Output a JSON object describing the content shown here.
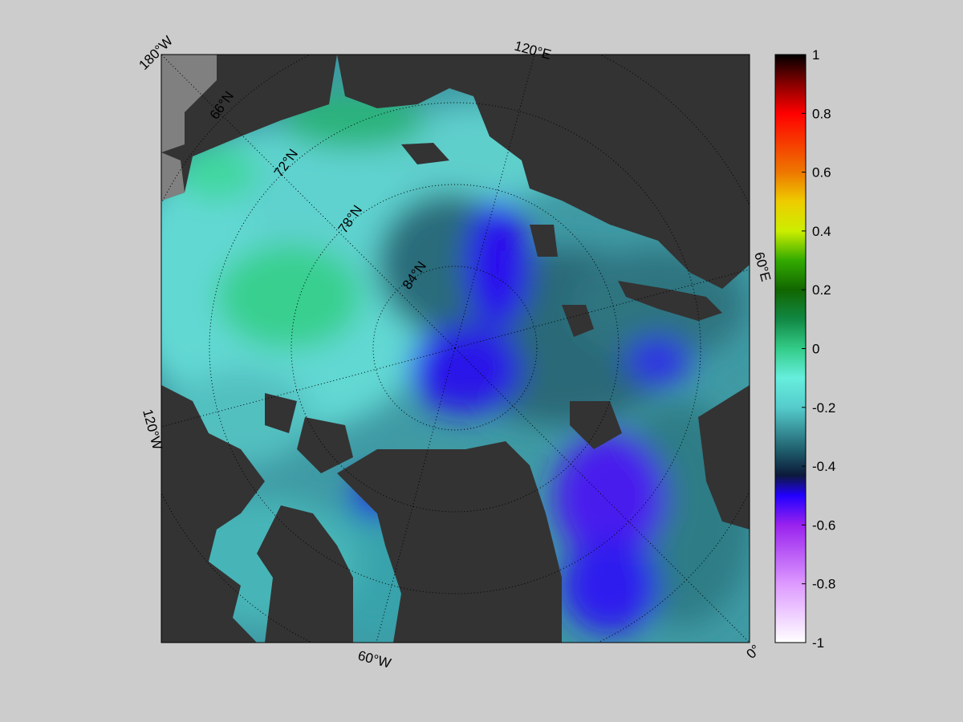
{
  "map": {
    "longitude_labels": [
      {
        "text": "180°W",
        "deg": "180",
        "dir": "W"
      },
      {
        "text": "120°E",
        "deg": "120",
        "dir": "E"
      },
      {
        "text": "60°E",
        "deg": "60",
        "dir": "E"
      },
      {
        "text": "0°",
        "deg": "0",
        "dir": ""
      },
      {
        "text": "60°W",
        "deg": "60",
        "dir": "W"
      },
      {
        "text": "120°W",
        "deg": "120",
        "dir": "W"
      }
    ],
    "latitude_labels": [
      {
        "text": "66°N",
        "deg": "66",
        "dir": "N"
      },
      {
        "text": "72°N",
        "deg": "72",
        "dir": "N"
      },
      {
        "text": "78°N",
        "deg": "78",
        "dir": "N"
      },
      {
        "text": "84°N",
        "deg": "84",
        "dir": "N"
      }
    ],
    "colors": {
      "background": "#cccccc",
      "land": "#333333",
      "missing": "#808080",
      "graticule": "#000000"
    }
  },
  "colorbar": {
    "min": -1,
    "max": 1,
    "ticks": [
      "1",
      "0.8",
      "0.6",
      "0.4",
      "0.2",
      "0",
      "-0.2",
      "-0.4",
      "-0.6",
      "-0.8",
      "-1"
    ],
    "tick_values": [
      1,
      0.8,
      0.6,
      0.4,
      0.2,
      0,
      -0.2,
      -0.4,
      -0.6,
      -0.8,
      -1
    ],
    "stops": [
      {
        "v": -1.0,
        "c": "#ffffff"
      },
      {
        "v": -0.8,
        "c": "#dd99ff"
      },
      {
        "v": -0.6,
        "c": "#9922ee"
      },
      {
        "v": -0.5,
        "c": "#2200ff"
      },
      {
        "v": -0.43,
        "c": "#0c1a3a"
      },
      {
        "v": -0.35,
        "c": "#1e5b6a"
      },
      {
        "v": -0.2,
        "c": "#55cccc"
      },
      {
        "v": -0.1,
        "c": "#66eedd"
      },
      {
        "v": 0.0,
        "c": "#33cc88"
      },
      {
        "v": 0.1,
        "c": "#118844"
      },
      {
        "v": 0.2,
        "c": "#116600"
      },
      {
        "v": 0.3,
        "c": "#33aa00"
      },
      {
        "v": 0.4,
        "c": "#ccee00"
      },
      {
        "v": 0.5,
        "c": "#eecc00"
      },
      {
        "v": 0.6,
        "c": "#ee7700"
      },
      {
        "v": 0.8,
        "c": "#ff0000"
      },
      {
        "v": 0.9,
        "c": "#880000"
      },
      {
        "v": 1.0,
        "c": "#000000"
      }
    ]
  }
}
